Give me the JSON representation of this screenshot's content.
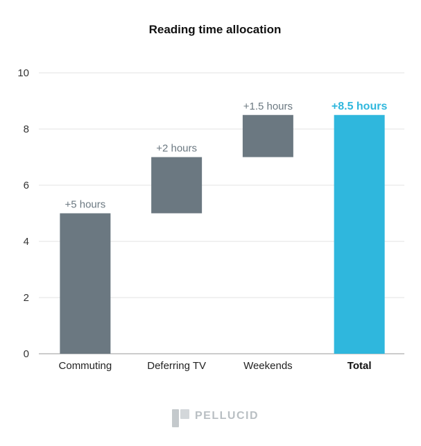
{
  "chart_data": {
    "type": "bar",
    "subtype": "waterfall",
    "title": "Reading time allocation",
    "xlabel": "",
    "ylabel": "",
    "ylim": [
      0,
      10
    ],
    "y_ticks": [
      0,
      2,
      4,
      6,
      8,
      10
    ],
    "grid": true,
    "categories": [
      "Commuting",
      "Deferring TV",
      "Weekends",
      "Total"
    ],
    "bars": [
      {
        "category": "Commuting",
        "start": 0,
        "end": 5,
        "value": 5,
        "label": "+5 hours",
        "is_total": false
      },
      {
        "category": "Deferring TV",
        "start": 5,
        "end": 7,
        "value": 2,
        "label": "+2 hours",
        "is_total": false
      },
      {
        "category": "Weekends",
        "start": 7,
        "end": 8.5,
        "value": 1.5,
        "label": "+1.5 hours",
        "is_total": false
      },
      {
        "category": "Total",
        "start": 0,
        "end": 8.5,
        "value": 8.5,
        "label": "+8.5 hours",
        "is_total": true
      }
    ],
    "colors": {
      "increment": "#6b7881",
      "total": "#2fb7dd",
      "grid": "#e3e3e3"
    }
  },
  "brand": {
    "name": "PELLUCID",
    "logo_icon": "pellucid-logo-icon"
  }
}
